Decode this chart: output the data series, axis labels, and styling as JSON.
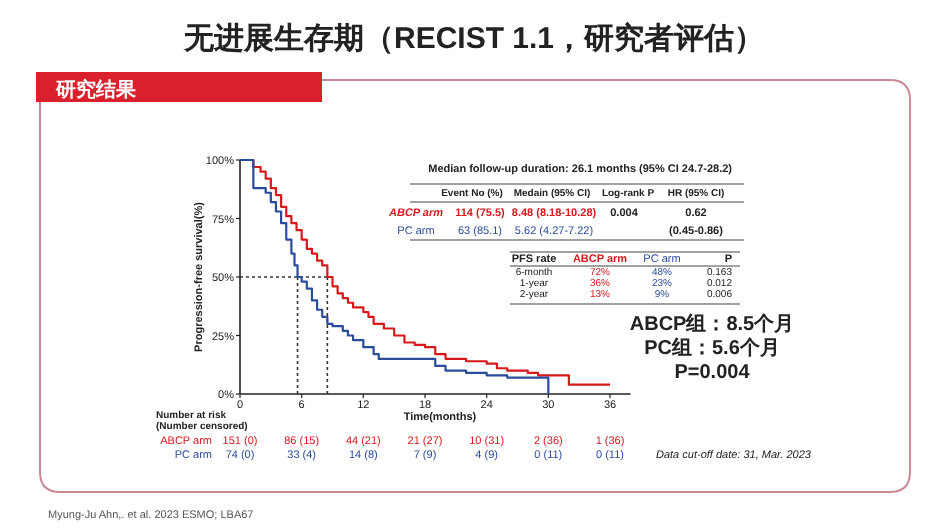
{
  "chart_data": {
    "type": "step",
    "title": "无进展生存期（RECIST 1.1，研究者评估）",
    "xlabel": "Time(months)",
    "ylabel": "Progression-free survival(%)",
    "xlim": [
      0,
      38
    ],
    "xticks": [
      0,
      6,
      12,
      18,
      24,
      30,
      36
    ],
    "ylim": [
      0,
      100
    ],
    "yticks": [
      {
        "value": 0,
        "label": "0%"
      },
      {
        "value": 25,
        "label": "25%"
      },
      {
        "value": 50,
        "label": "50%"
      },
      {
        "value": 75,
        "label": "75%"
      },
      {
        "value": 100,
        "label": "100%"
      }
    ],
    "grid": false,
    "line_style": "solid",
    "ref_lines": [
      {
        "axis": "y",
        "value": 50,
        "line_style": "dotted"
      },
      {
        "axis": "x",
        "value": 5.6,
        "line_style": "dotted"
      },
      {
        "axis": "x",
        "value": 8.5,
        "line_style": "dotted"
      }
    ],
    "series": [
      {
        "name": "ABCP arm",
        "color": "#d7191c",
        "x": [
          0,
          1.3,
          2,
          2.5,
          3,
          3.5,
          4,
          4.5,
          5,
          5.5,
          6,
          6.5,
          7,
          7.5,
          8,
          8.5,
          9,
          9.5,
          10,
          10.5,
          11,
          12,
          12.5,
          13,
          14,
          15,
          16,
          17,
          18,
          19,
          20,
          22,
          24,
          25,
          26,
          28,
          29,
          31,
          32,
          36
        ],
        "values": [
          100,
          97,
          95,
          92,
          88,
          85,
          80,
          76,
          73,
          70,
          66,
          62,
          60,
          57,
          55,
          50,
          46,
          43,
          41,
          39,
          37,
          35,
          33,
          30,
          28,
          25,
          22,
          21,
          20,
          17,
          15,
          14,
          13,
          11,
          10,
          9,
          8,
          8,
          4,
          4
        ]
      },
      {
        "name": "PC arm",
        "color": "#2b4c9b",
        "x": [
          0,
          1.3,
          2.5,
          3,
          3.5,
          4,
          4.5,
          5,
          5.3,
          5.6,
          6,
          6.5,
          7,
          7.5,
          8,
          8.5,
          9,
          10,
          10.5,
          11,
          12,
          13,
          13.5,
          18,
          19,
          20,
          22,
          24,
          26,
          30,
          30
        ],
        "values": [
          100,
          88,
          86,
          82,
          78,
          73,
          66,
          60,
          55,
          50,
          48,
          45,
          40,
          36,
          33,
          30,
          29,
          27,
          25,
          23,
          20,
          17,
          15,
          15,
          12,
          10,
          9,
          8,
          7,
          7,
          0
        ]
      }
    ],
    "annotations": [
      "Median follow-up duration: 26.1 months (95% CI 24.7-28.2)",
      "Event No (%)",
      "Medain (95% CI)",
      "Log-rank P",
      "HR (95% CI)",
      "114 (75.5)",
      "8.48 (8.18-10.28)",
      "0.004",
      "0.62",
      "63 (85.1)",
      "5.62 (4.27-7.22)",
      "(0.45-0.86)",
      "PFS rate",
      "P",
      "6-month",
      "72%",
      "48%",
      "0.163",
      "1-year",
      "36%",
      "23%",
      "0.012",
      "2-year",
      "13%",
      "9%",
      "0.006",
      "ABCP组：8.5个月",
      "PC组：5.6个月",
      "P=0.004",
      "Number at risk",
      "(Number censored)",
      "151 (0)",
      "86 (15)",
      "44 (21)",
      "21 (27)",
      "10 (31)",
      "2 (36)",
      "1 (36)",
      "74 (0)",
      "33 (4)",
      "14 (8)",
      "7 (9)",
      "4 (9)",
      "0 (11)",
      "0 (11)",
      "Data cut-off date: 31, Mar. 2023",
      "Myung-Ju Ahn,. et al. 2023 ESMO; LBA67",
      "研究结果"
    ]
  }
}
